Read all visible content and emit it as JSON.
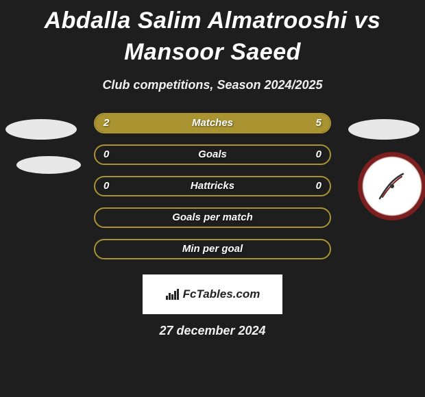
{
  "title": "Abdalla Salim Almatrooshi vs Mansoor Saeed",
  "subtitle": "Club competitions, Season 2024/2025",
  "bar_color": "#a99431",
  "background_color": "#1e1e1e",
  "rows": [
    {
      "label": "Matches",
      "left": "2",
      "right": "5",
      "left_pct": 28.6,
      "right_pct": 71.4
    },
    {
      "label": "Goals",
      "left": "0",
      "right": "0",
      "left_pct": 0,
      "right_pct": 0
    },
    {
      "label": "Hattricks",
      "left": "0",
      "right": "0",
      "left_pct": 0,
      "right_pct": 0
    },
    {
      "label": "Goals per match",
      "left": "",
      "right": "",
      "left_pct": 0,
      "right_pct": 0
    },
    {
      "label": "Min per goal",
      "left": "",
      "right": "",
      "left_pct": 0,
      "right_pct": 0
    }
  ],
  "brand": "FcTables.com",
  "date": "27 december 2024"
}
